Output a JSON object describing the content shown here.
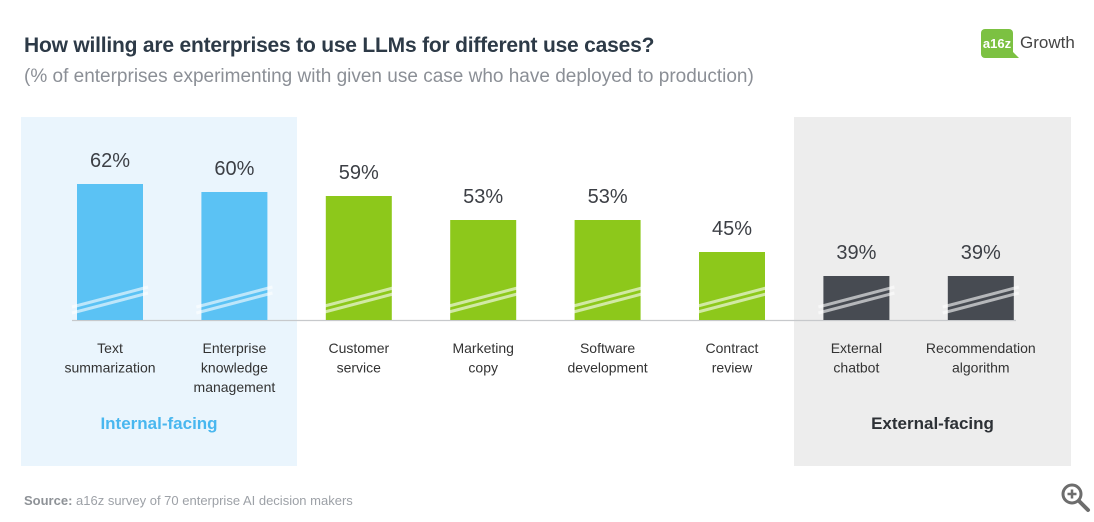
{
  "header": {
    "title": "How willing are enterprises to use LLMs for different use cases?",
    "subtitle": "(% of enterprises experimenting with given use case who have deployed to production)"
  },
  "logo": {
    "badge": "a16z",
    "text": "Growth"
  },
  "groups": {
    "internal": "Internal-facing",
    "external": "External-facing"
  },
  "footer": {
    "source_label": "Source:",
    "source_text": " a16z survey of 70 enterprise AI decision makers"
  },
  "zoom_icon": "zoom-in-icon",
  "colors": {
    "internal": "#5bc2f4",
    "middle": "#8dc81b",
    "external": "#474b52",
    "internal_bg": "#eaf5fd",
    "external_bg": "#ededed"
  },
  "chart_data": {
    "type": "bar",
    "title": "How willing are enterprises to use LLMs for different use cases?",
    "subtitle": "(% of enterprises experimenting with given use case who have deployed to production)",
    "categories": [
      "Text summarization",
      "Enterprise knowledge management",
      "Customer service",
      "Marketing copy",
      "Software development",
      "Contract review",
      "External chatbot",
      "Recommendation algorithm"
    ],
    "category_lines": [
      [
        "Text",
        "summarization"
      ],
      [
        "Enterprise",
        "knowledge",
        "management"
      ],
      [
        "Customer",
        "service"
      ],
      [
        "Marketing",
        "copy"
      ],
      [
        "Software",
        "development"
      ],
      [
        "Contract",
        "review"
      ],
      [
        "External",
        "chatbot"
      ],
      [
        "Recommendation",
        "algorithm"
      ]
    ],
    "values": [
      62,
      60,
      59,
      53,
      53,
      45,
      39,
      39
    ],
    "value_labels": [
      "62%",
      "60%",
      "59%",
      "53%",
      "53%",
      "45%",
      "39%",
      "39%"
    ],
    "groups": [
      "internal",
      "internal",
      "middle",
      "middle",
      "middle",
      "middle",
      "external",
      "external"
    ],
    "xlabel": "",
    "ylabel": "",
    "axis_break": true,
    "grid": false,
    "legend": "none"
  }
}
